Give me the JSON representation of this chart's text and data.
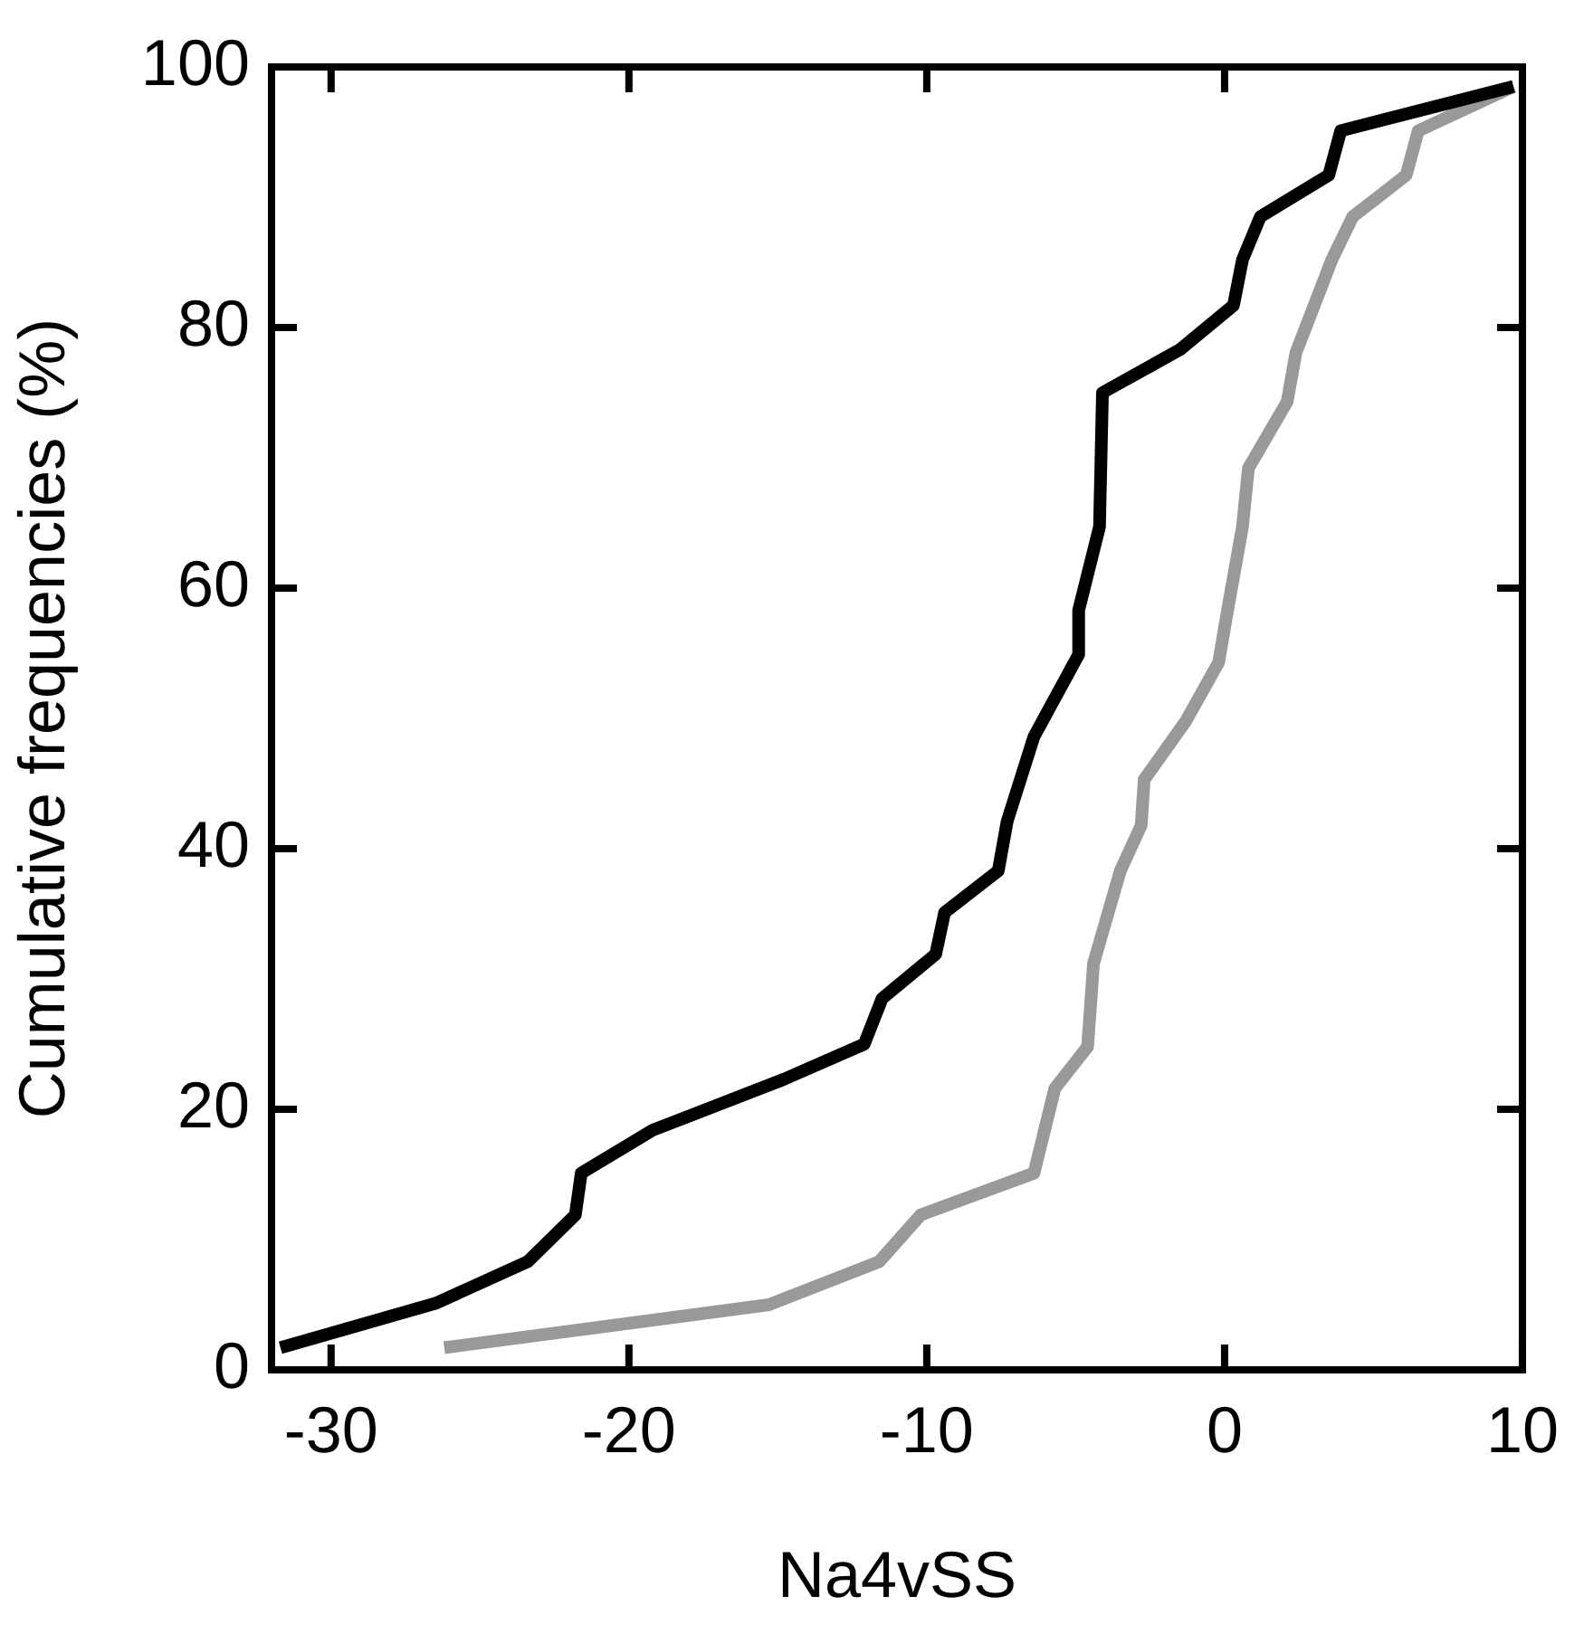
{
  "chart_data": {
    "type": "line",
    "xlabel": "Na4vSS",
    "ylabel": "Cumulative frequencies (%)",
    "xlim": [
      -32,
      10
    ],
    "xticks": [
      -30,
      -20,
      -10,
      0,
      10
    ],
    "ylim": [
      0,
      100
    ],
    "yticks": [
      0,
      20,
      40,
      60,
      80,
      100
    ],
    "grid": false,
    "legend": false,
    "marker": "none",
    "line_style": "solid",
    "series": [
      {
        "color": "#000000",
        "x": [
          -31.7,
          -26.5,
          -23.4,
          -21.8,
          -21.6,
          -19.2,
          -14.8,
          -12.1,
          -11.5,
          -9.7,
          -9.4,
          -7.6,
          -7.3,
          -6.4,
          -4.9,
          -4.9,
          -4.2,
          -4.1,
          -1.5,
          0.3,
          0.6,
          1.2,
          3.5,
          3.9,
          9.7
        ],
        "values": [
          1.7,
          5.1,
          8.3,
          11.9,
          15.1,
          18.4,
          22.3,
          25,
          28.5,
          31.9,
          35.1,
          38.3,
          42.1,
          48.6,
          54.9,
          58.3,
          64.7,
          75,
          78.3,
          81.7,
          85.2,
          88.5,
          91.7,
          95.1,
          98.5
        ]
      },
      {
        "color": "#999999",
        "x": [
          -26.2,
          -15.3,
          -11.6,
          -10.2,
          -6.4,
          -5.7,
          -4.6,
          -4.4,
          -3.5,
          -2.8,
          -2.7,
          -1.3,
          -0.2,
          0.1,
          0.6,
          0.8,
          2.1,
          2.4,
          3.6,
          4.3,
          6.1,
          6.5,
          9.7
        ],
        "values": [
          1.7,
          5,
          8.3,
          11.9,
          15.1,
          21.6,
          24.8,
          31.2,
          38.3,
          41.8,
          45.3,
          49.8,
          54.3,
          58.3,
          64.7,
          69.2,
          74.3,
          78.1,
          85.2,
          88.5,
          91.7,
          95.1,
          98.5
        ]
      }
    ]
  }
}
